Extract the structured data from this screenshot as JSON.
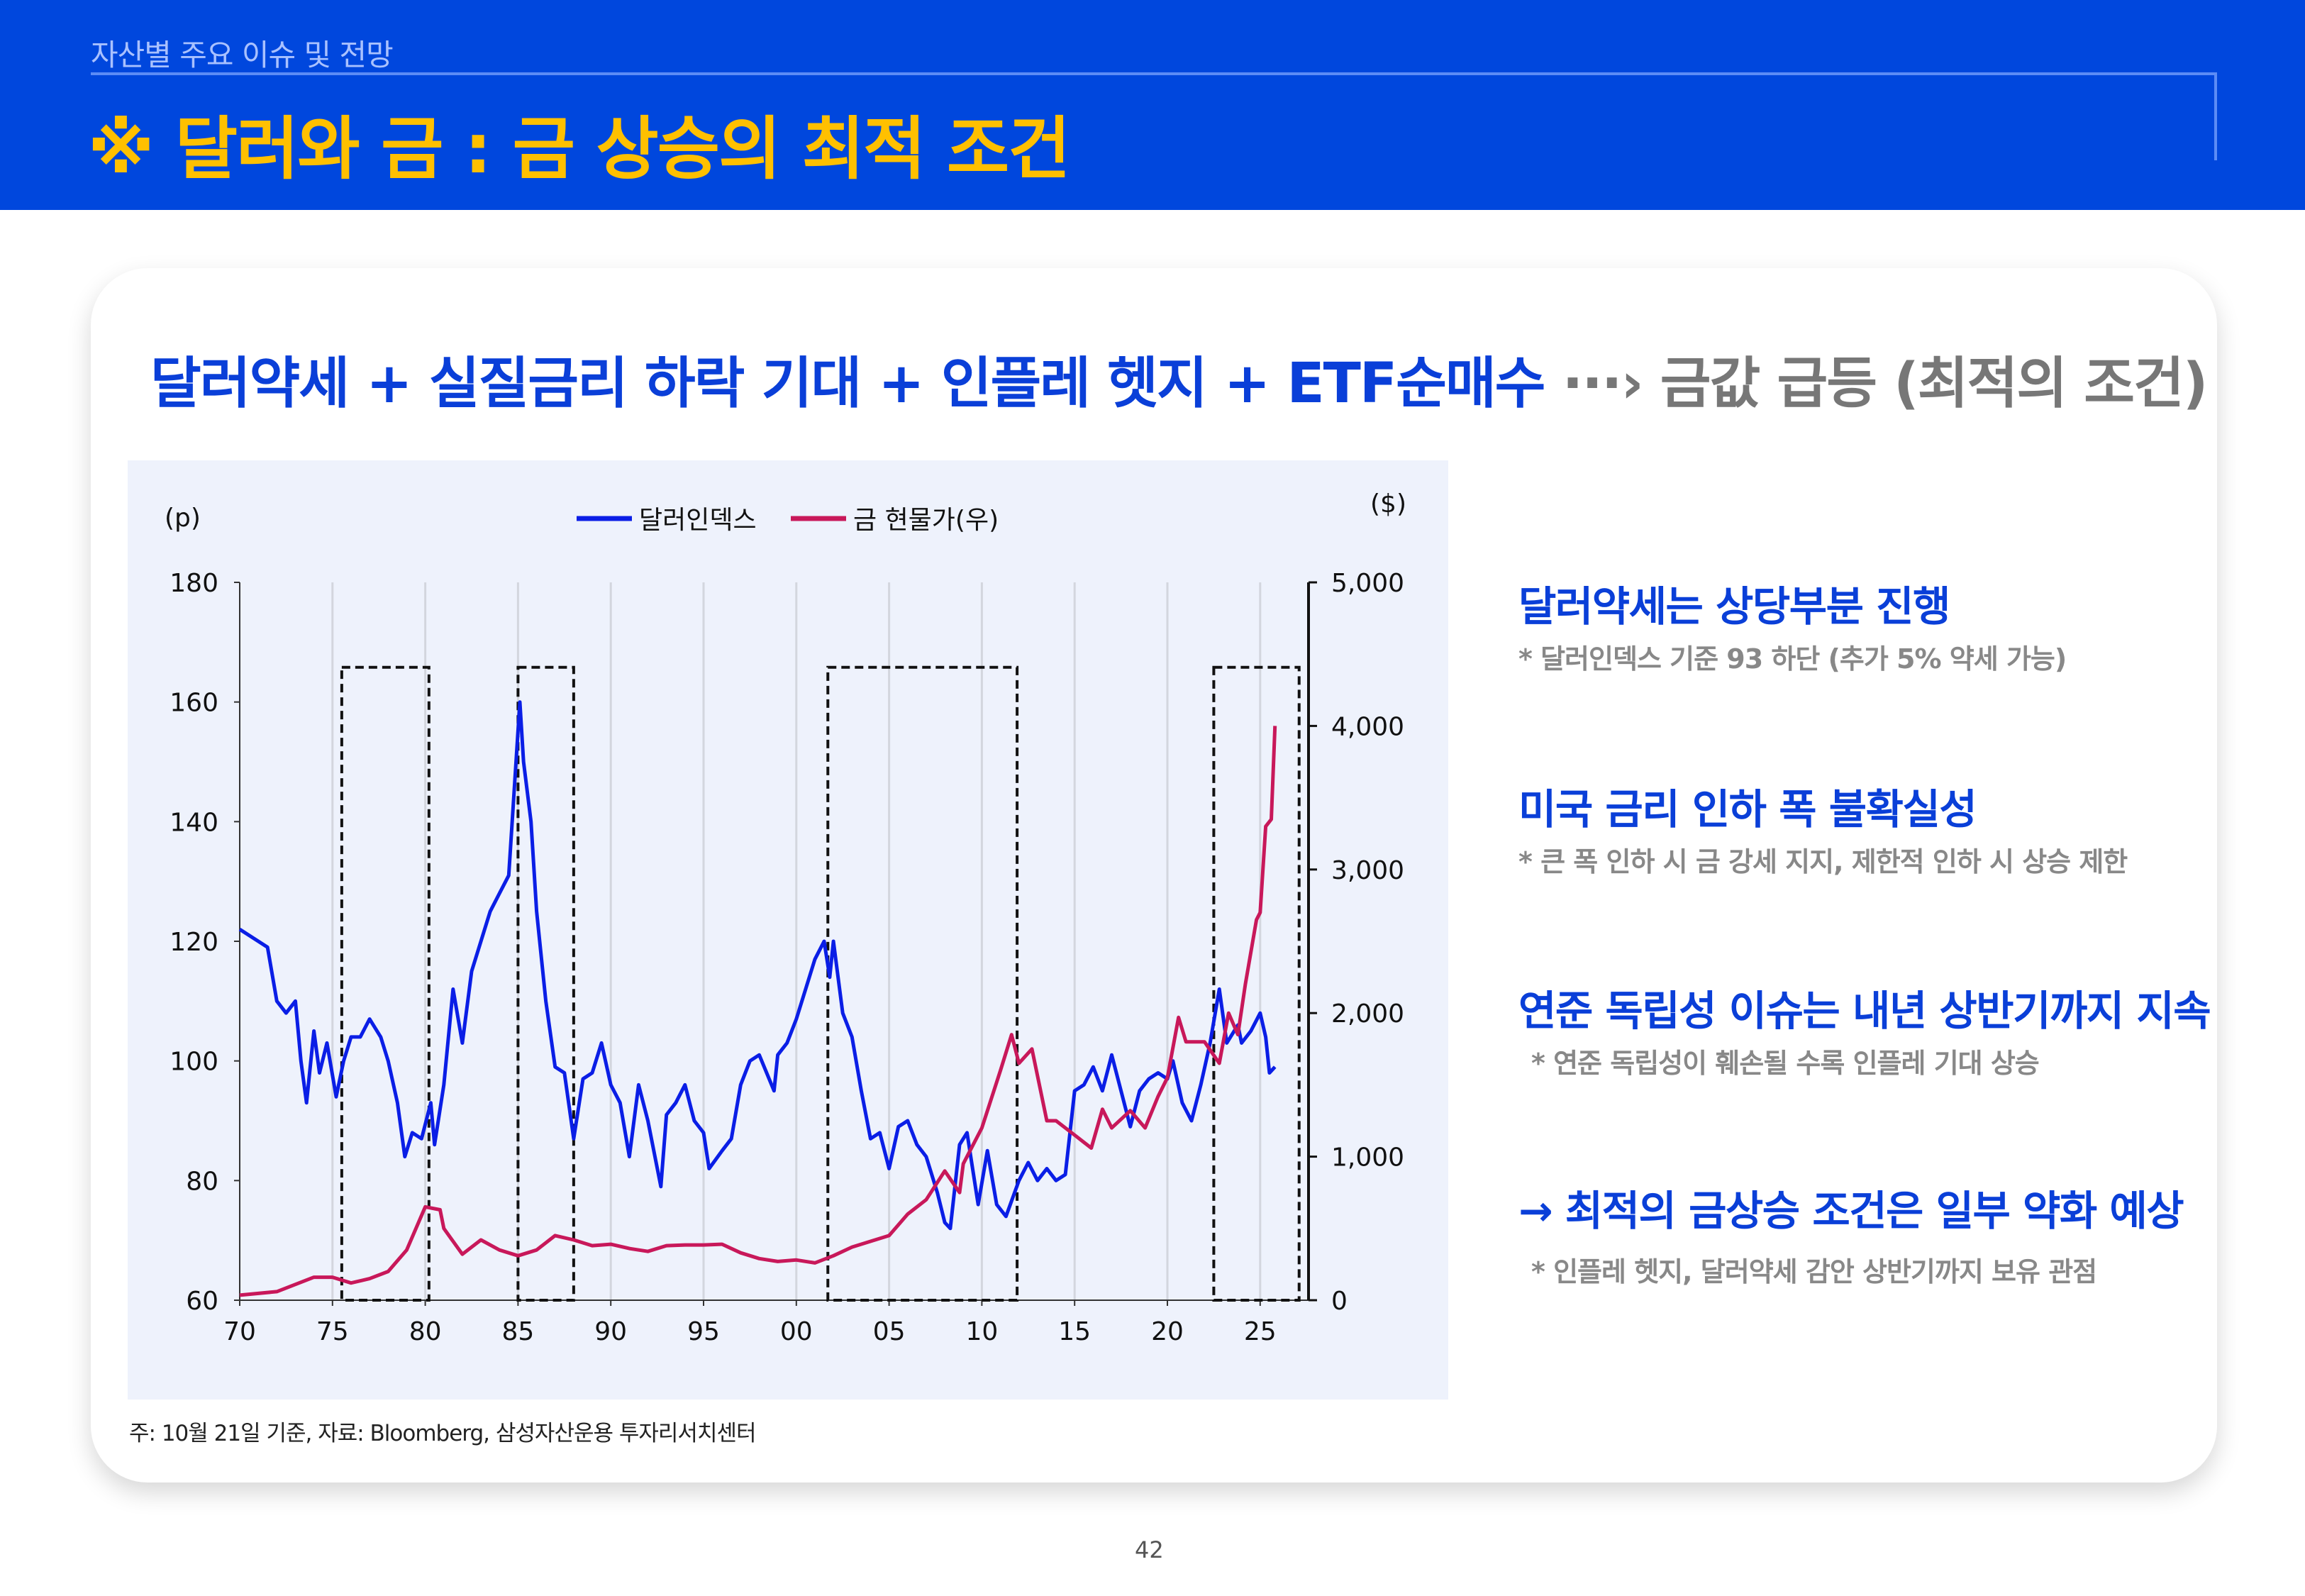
{
  "header": {
    "section": "자산별 주요 이슈 및 전망",
    "title": "※ 달러와 금 : 금 상승의 최적 조건"
  },
  "headline": {
    "main": "달러약세 + 실질금리 하락 기대 + 인플레 헷지 + ETF순매수",
    "arrow": "···›",
    "result": "금값 급등 (최적의 조건)"
  },
  "points": [
    {
      "title": "달러약세는 상당부분 진행",
      "sub": "* 달러인덱스 기준 93 하단 (추가 5% 약세 가능)"
    },
    {
      "title": "미국 금리 인하 폭 불확실성",
      "sub": "* 큰 폭 인하 시 금 강세 지지, 제한적 인하 시 상승 제한"
    },
    {
      "title": "연준 독립성 이슈는 내년 상반기까지 지속",
      "sub": "* 연준 독립성이 훼손될 수록 인플레 기대 상승"
    },
    {
      "title": "→ 최적의 금상승 조건은 일부 약화 예상",
      "sub": "* 인플레 헷지, 달러약세 감안 상반기까지 보유 관점"
    }
  ],
  "footnote": "주: 10월 21일 기준, 자료: Bloomberg, 삼성자산운용 투자리서치센터",
  "page_number": "42",
  "colors": {
    "header_bg": "#0047DD",
    "title": "#FFC000",
    "accent": "#0A3FD8",
    "dollar": "#0A1EE6",
    "gold": "#C8185A"
  },
  "chart_data": {
    "type": "line",
    "left_unit": "(p)",
    "right_unit": "($)",
    "x_ticks": [
      "70",
      "75",
      "80",
      "85",
      "90",
      "95",
      "00",
      "05",
      "10",
      "15",
      "20",
      "25"
    ],
    "x_range": [
      1970,
      2027.6
    ],
    "y_left": {
      "range": [
        60,
        180
      ],
      "ticks": [
        "60",
        "80",
        "100",
        "120",
        "140",
        "160",
        "180"
      ]
    },
    "y_right": {
      "range": [
        0,
        5000
      ],
      "ticks": [
        "0",
        "1,000",
        "2,000",
        "3,000",
        "4,000",
        "5,000"
      ]
    },
    "grid": "vertical",
    "legend": "top-center",
    "highlight_periods": [
      [
        1975.5,
        1980.2
      ],
      [
        1985.0,
        1988.0
      ],
      [
        2001.7,
        2011.9
      ],
      [
        2022.5,
        2027.1
      ]
    ],
    "series": [
      {
        "name": "달러인덱스",
        "axis": "left",
        "color": "#0A1EE6",
        "points": [
          [
            1970,
            122
          ],
          [
            1971,
            120
          ],
          [
            1971.5,
            119
          ],
          [
            1972,
            110
          ],
          [
            1972.5,
            108
          ],
          [
            1973,
            110
          ],
          [
            1973.3,
            100
          ],
          [
            1973.6,
            93
          ],
          [
            1974,
            105
          ],
          [
            1974.3,
            98
          ],
          [
            1974.7,
            103
          ],
          [
            1975.2,
            94
          ],
          [
            1975.6,
            100
          ],
          [
            1976,
            104
          ],
          [
            1976.5,
            104
          ],
          [
            1977,
            107
          ],
          [
            1977.6,
            104
          ],
          [
            1978,
            100
          ],
          [
            1978.5,
            93
          ],
          [
            1978.9,
            84
          ],
          [
            1979.3,
            88
          ],
          [
            1979.8,
            87
          ],
          [
            1980.3,
            93
          ],
          [
            1980.5,
            86
          ],
          [
            1981,
            96
          ],
          [
            1981.5,
            112
          ],
          [
            1982,
            103
          ],
          [
            1982.5,
            115
          ],
          [
            1983,
            120
          ],
          [
            1983.5,
            125
          ],
          [
            1984,
            128
          ],
          [
            1984.5,
            131
          ],
          [
            1985.1,
            160
          ],
          [
            1985.3,
            150
          ],
          [
            1985.7,
            140
          ],
          [
            1986,
            125
          ],
          [
            1986.5,
            110
          ],
          [
            1987,
            99
          ],
          [
            1987.5,
            98
          ],
          [
            1988,
            87
          ],
          [
            1988.5,
            97
          ],
          [
            1989,
            98
          ],
          [
            1989.5,
            103
          ],
          [
            1990,
            96
          ],
          [
            1990.5,
            93
          ],
          [
            1991,
            84
          ],
          [
            1991.5,
            96
          ],
          [
            1992,
            90
          ],
          [
            1992.7,
            79
          ],
          [
            1993,
            91
          ],
          [
            1993.5,
            93
          ],
          [
            1994,
            96
          ],
          [
            1994.5,
            90
          ],
          [
            1995,
            88
          ],
          [
            1995.3,
            82
          ],
          [
            1996,
            85
          ],
          [
            1996.5,
            87
          ],
          [
            1997,
            96
          ],
          [
            1997.5,
            100
          ],
          [
            1998,
            101
          ],
          [
            1998.8,
            95
          ],
          [
            1999,
            101
          ],
          [
            1999.5,
            103
          ],
          [
            2000,
            107
          ],
          [
            2000.5,
            112
          ],
          [
            2001,
            117
          ],
          [
            2001.5,
            120
          ],
          [
            2001.8,
            114
          ],
          [
            2002,
            120
          ],
          [
            2002.5,
            108
          ],
          [
            2003,
            104
          ],
          [
            2003.5,
            95
          ],
          [
            2004,
            87
          ],
          [
            2004.5,
            88
          ],
          [
            2005,
            82
          ],
          [
            2005.5,
            89
          ],
          [
            2006,
            90
          ],
          [
            2006.5,
            86
          ],
          [
            2007,
            84
          ],
          [
            2007.6,
            78
          ],
          [
            2008,
            73
          ],
          [
            2008.3,
            72
          ],
          [
            2008.8,
            86
          ],
          [
            2009.2,
            88
          ],
          [
            2009.8,
            76
          ],
          [
            2010.3,
            85
          ],
          [
            2010.8,
            76
          ],
          [
            2011.3,
            74
          ],
          [
            2012,
            80
          ],
          [
            2012.5,
            83
          ],
          [
            2013,
            80
          ],
          [
            2013.5,
            82
          ],
          [
            2014,
            80
          ],
          [
            2014.5,
            81
          ],
          [
            2015,
            95
          ],
          [
            2015.5,
            96
          ],
          [
            2016,
            99
          ],
          [
            2016.5,
            95
          ],
          [
            2017,
            101
          ],
          [
            2017.5,
            95
          ],
          [
            2018,
            89
          ],
          [
            2018.5,
            95
          ],
          [
            2019,
            97
          ],
          [
            2019.5,
            98
          ],
          [
            2020,
            97
          ],
          [
            2020.3,
            100
          ],
          [
            2020.8,
            93
          ],
          [
            2021.3,
            90
          ],
          [
            2021.8,
            96
          ],
          [
            2022.3,
            103
          ],
          [
            2022.8,
            112
          ],
          [
            2023.2,
            103
          ],
          [
            2023.8,
            106
          ],
          [
            2024,
            103
          ],
          [
            2024.5,
            105
          ],
          [
            2025,
            108
          ],
          [
            2025.3,
            104
          ],
          [
            2025.5,
            98
          ],
          [
            2025.8,
            99
          ]
        ]
      },
      {
        "name": "금 현물가(우)",
        "axis": "right",
        "color": "#C8185A",
        "points": [
          [
            1970,
            35
          ],
          [
            1972,
            60
          ],
          [
            1974,
            160
          ],
          [
            1975,
            160
          ],
          [
            1976,
            120
          ],
          [
            1977,
            150
          ],
          [
            1978,
            200
          ],
          [
            1979,
            350
          ],
          [
            1980,
            650
          ],
          [
            1980.8,
            630
          ],
          [
            1981,
            500
          ],
          [
            1982,
            320
          ],
          [
            1983,
            420
          ],
          [
            1984,
            350
          ],
          [
            1985,
            310
          ],
          [
            1986,
            350
          ],
          [
            1987,
            450
          ],
          [
            1988,
            420
          ],
          [
            1989,
            380
          ],
          [
            1990,
            390
          ],
          [
            1991,
            360
          ],
          [
            1992,
            340
          ],
          [
            1993,
            380
          ],
          [
            1994,
            385
          ],
          [
            1995,
            385
          ],
          [
            1996,
            390
          ],
          [
            1997,
            330
          ],
          [
            1998,
            290
          ],
          [
            1999,
            270
          ],
          [
            2000,
            280
          ],
          [
            2001,
            260
          ],
          [
            2002,
            310
          ],
          [
            2003,
            370
          ],
          [
            2004,
            410
          ],
          [
            2005,
            450
          ],
          [
            2006,
            600
          ],
          [
            2007,
            700
          ],
          [
            2008,
            900
          ],
          [
            2008.8,
            750
          ],
          [
            2009,
            950
          ],
          [
            2010,
            1200
          ],
          [
            2011,
            1600
          ],
          [
            2011.6,
            1850
          ],
          [
            2012,
            1650
          ],
          [
            2012.7,
            1750
          ],
          [
            2013.5,
            1250
          ],
          [
            2014,
            1250
          ],
          [
            2015,
            1150
          ],
          [
            2015.9,
            1060
          ],
          [
            2016.5,
            1330
          ],
          [
            2017,
            1200
          ],
          [
            2018,
            1320
          ],
          [
            2018.8,
            1200
          ],
          [
            2019.5,
            1420
          ],
          [
            2020,
            1550
          ],
          [
            2020.6,
            1970
          ],
          [
            2021,
            1800
          ],
          [
            2022,
            1800
          ],
          [
            2022.8,
            1650
          ],
          [
            2023.3,
            2000
          ],
          [
            2023.8,
            1850
          ],
          [
            2024.2,
            2200
          ],
          [
            2024.8,
            2650
          ],
          [
            2025,
            2700
          ],
          [
            2025.3,
            3300
          ],
          [
            2025.6,
            3350
          ],
          [
            2025.8,
            4000
          ]
        ]
      }
    ]
  }
}
